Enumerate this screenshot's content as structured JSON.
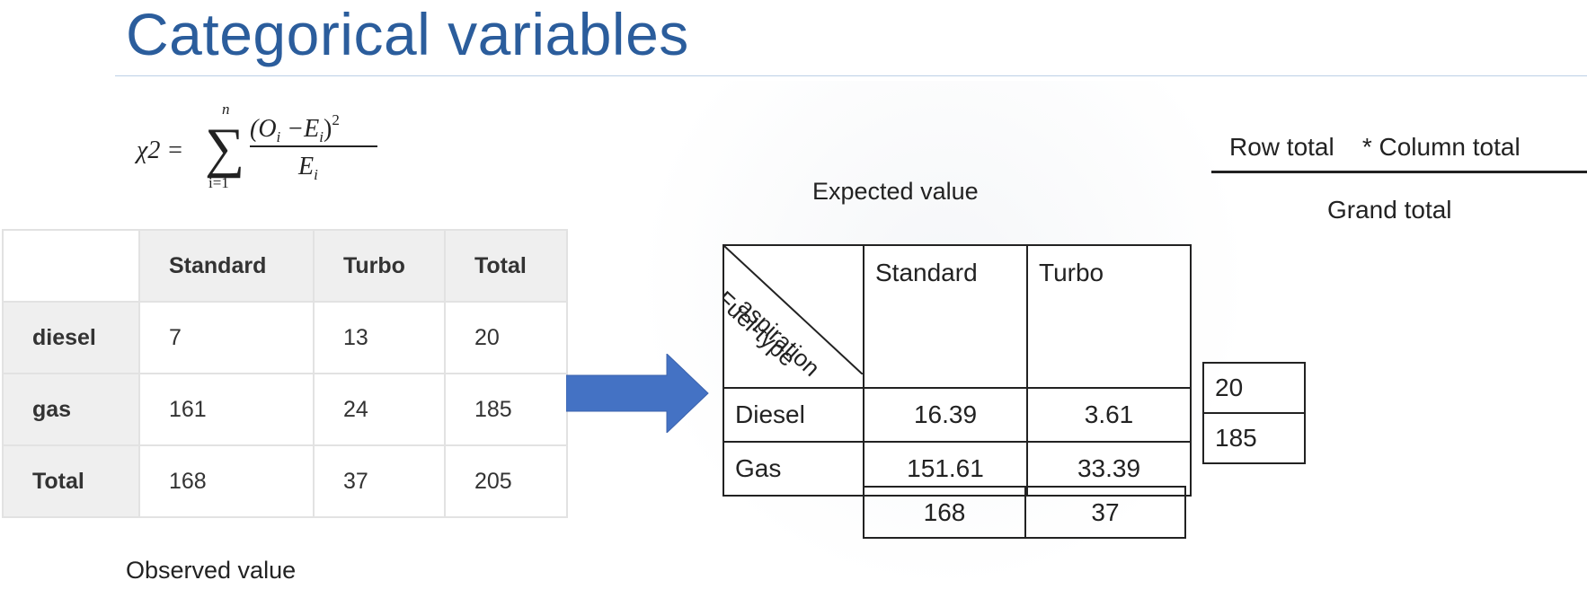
{
  "title": "Categorical variables",
  "formula": {
    "lhs": "χ2 =",
    "sum_upper": "n",
    "sum_lower": "i=1",
    "numerator_parts": [
      "(O",
      "i",
      " −E",
      "i",
      ")",
      "2"
    ],
    "denominator_parts": [
      "E",
      "i"
    ]
  },
  "observed": {
    "caption": "Observed value",
    "headers": [
      "",
      "Standard",
      "Turbo",
      "Total"
    ],
    "rows": [
      {
        "label": "diesel",
        "values": [
          "7",
          "13",
          "20"
        ]
      },
      {
        "label": "gas",
        "values": [
          "161",
          "24",
          "185"
        ]
      },
      {
        "label": "Total",
        "values": [
          "168",
          "37",
          "205"
        ]
      }
    ]
  },
  "expected": {
    "caption": "Expected value",
    "corner_top": "aspiration",
    "corner_bottom": "Fuel-type",
    "headers": [
      "Standard",
      "Turbo"
    ],
    "rows": [
      {
        "label": "Diesel",
        "values": [
          "16.39",
          "3.61"
        ]
      },
      {
        "label": "Gas",
        "values": [
          "151.61",
          "33.39"
        ]
      }
    ],
    "column_totals": [
      "168",
      "37"
    ],
    "row_totals": [
      "20",
      "185"
    ]
  },
  "expected_formula": {
    "numerator": "Row total    * Column total",
    "denominator": "Grand total"
  },
  "colors": {
    "title": "#2b5d9c",
    "arrow": "#4472c4",
    "table_header_bg": "#efefef"
  }
}
